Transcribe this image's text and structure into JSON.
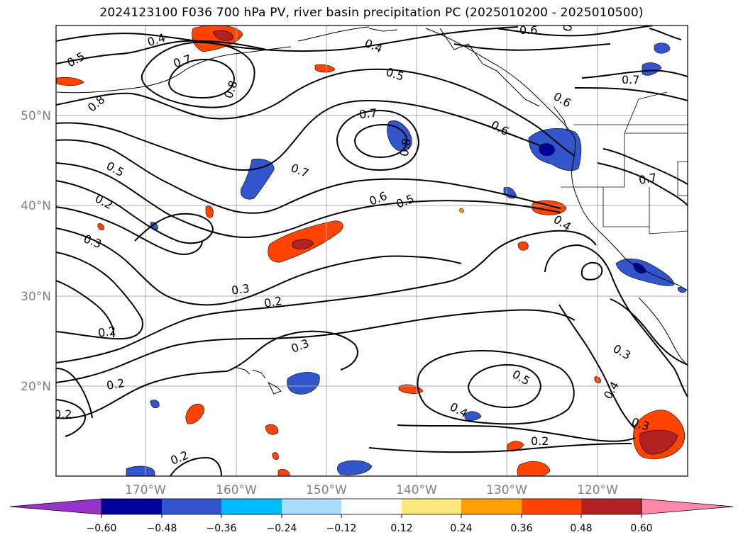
{
  "title": "2024123100 F036 700 hPa PV, river basin precipitation PC (2025010200 - 2025010500)",
  "map": {
    "lat_labels": [
      "50°N",
      "40°N",
      "30°N",
      "20°N"
    ],
    "lon_labels": [
      "170°W",
      "160°W",
      "150°W",
      "140°W",
      "130°W",
      "120°W"
    ],
    "contour_labels": [
      "0.4",
      "0.5",
      "0.7",
      "0.8",
      "0.8",
      "0.4",
      "0.5",
      "0.6",
      "0.8",
      "0.7",
      "0.6",
      "0.8",
      "0.7",
      "0.7",
      "0.6",
      "0.5",
      "0.6",
      "0.5",
      "0.7",
      "0.2",
      "0.3",
      "0.4",
      "0.3",
      "0.2",
      "0.2",
      "0.3",
      "0.2",
      "0.2",
      "0.5",
      "0.4",
      "0.3",
      "0.4",
      "0.3",
      "0.2",
      "0.2"
    ],
    "colors": {
      "contour": "#000000",
      "grid": "#aaaaaa",
      "coast": "#000000"
    }
  },
  "colorbar": {
    "colors": [
      "#9933cc",
      "#000099",
      "#3355cc",
      "#00bbff",
      "#aaddff",
      "#ffffff",
      "#ffe880",
      "#ffa000",
      "#ff4400",
      "#b22222",
      "#ff88aa"
    ],
    "tick_labels": [
      "−0.60",
      "−0.48",
      "−0.36",
      "−0.24",
      "−0.12",
      "0.12",
      "0.24",
      "0.36",
      "0.48",
      "0.60"
    ]
  }
}
